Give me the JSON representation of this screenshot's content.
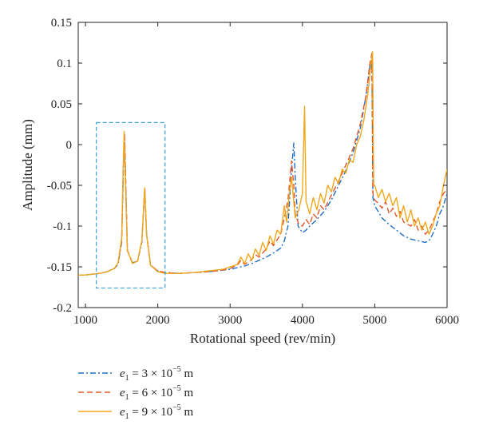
{
  "chart_data": {
    "type": "line",
    "title": "",
    "xlabel": "Rotational speed (rev/min)",
    "ylabel": "Amplitude (mm)",
    "xlim": [
      900,
      6000
    ],
    "ylim": [
      -0.2,
      0.15
    ],
    "xticks": [
      "1000",
      "2000",
      "3000",
      "4000",
      "5000",
      "6000"
    ],
    "yticks": [
      "0.15",
      "0.1",
      "0.05",
      "0",
      "-0.05",
      "-0.1",
      "-0.15",
      "-0.2"
    ],
    "grid": false,
    "legend_position": "bottom-left",
    "highlight_box": {
      "x": [
        1150,
        2100
      ],
      "y": [
        -0.176,
        0.027
      ],
      "style": "dashed",
      "color": "#4aa8e0"
    },
    "series": [
      {
        "name": "e1 = 3 × 10^-5 m",
        "legend_label": {
          "var": "e",
          "sub": "1",
          "eq": " = 3 × 10",
          "exp": "−5",
          "unit": " m"
        },
        "color": "#1f6fc5",
        "dash": "dashdot",
        "points": [
          [
            900,
            -0.16
          ],
          [
            1000,
            -0.16
          ],
          [
            1100,
            -0.159
          ],
          [
            1200,
            -0.158
          ],
          [
            1300,
            -0.156
          ],
          [
            1400,
            -0.152
          ],
          [
            1450,
            -0.147
          ],
          [
            1500,
            -0.12
          ],
          [
            1525,
            -0.03
          ],
          [
            1540,
            0.012
          ],
          [
            1555,
            -0.04
          ],
          [
            1580,
            -0.13
          ],
          [
            1650,
            -0.145
          ],
          [
            1720,
            -0.143
          ],
          [
            1780,
            -0.12
          ],
          [
            1820,
            -0.055
          ],
          [
            1845,
            -0.11
          ],
          [
            1900,
            -0.148
          ],
          [
            2000,
            -0.155
          ],
          [
            2100,
            -0.157
          ],
          [
            2300,
            -0.158
          ],
          [
            2500,
            -0.157
          ],
          [
            2700,
            -0.156
          ],
          [
            2900,
            -0.154
          ],
          [
            3000,
            -0.153
          ],
          [
            3100,
            -0.151
          ],
          [
            3200,
            -0.149
          ],
          [
            3300,
            -0.146
          ],
          [
            3400,
            -0.142
          ],
          [
            3500,
            -0.138
          ],
          [
            3600,
            -0.133
          ],
          [
            3700,
            -0.127
          ],
          [
            3750,
            -0.118
          ],
          [
            3800,
            -0.1
          ],
          [
            3850,
            -0.03
          ],
          [
            3880,
            0.002
          ],
          [
            3900,
            -0.04
          ],
          [
            3940,
            -0.1
          ],
          [
            4000,
            -0.108
          ],
          [
            4050,
            -0.105
          ],
          [
            4100,
            -0.1
          ],
          [
            4200,
            -0.092
          ],
          [
            4300,
            -0.082
          ],
          [
            4400,
            -0.068
          ],
          [
            4500,
            -0.05
          ],
          [
            4600,
            -0.032
          ],
          [
            4700,
            -0.01
          ],
          [
            4800,
            0.02
          ],
          [
            4880,
            0.06
          ],
          [
            4930,
            0.095
          ],
          [
            4960,
            0.11
          ],
          [
            4975,
            -0.065
          ],
          [
            5000,
            -0.075
          ],
          [
            5100,
            -0.09
          ],
          [
            5200,
            -0.098
          ],
          [
            5300,
            -0.105
          ],
          [
            5400,
            -0.112
          ],
          [
            5500,
            -0.116
          ],
          [
            5600,
            -0.118
          ],
          [
            5700,
            -0.12
          ],
          [
            5750,
            -0.118
          ],
          [
            5800,
            -0.11
          ],
          [
            5850,
            -0.1
          ],
          [
            5900,
            -0.085
          ],
          [
            5950,
            -0.075
          ],
          [
            6000,
            -0.06
          ]
        ]
      },
      {
        "name": "e1 = 6 × 10^-5 m",
        "legend_label": {
          "var": "e",
          "sub": "1",
          "eq": " = 6 × 10",
          "exp": "−5",
          "unit": " m"
        },
        "color": "#e2572b",
        "dash": "dashed",
        "points": [
          [
            900,
            -0.16
          ],
          [
            1000,
            -0.16
          ],
          [
            1100,
            -0.159
          ],
          [
            1200,
            -0.158
          ],
          [
            1300,
            -0.156
          ],
          [
            1400,
            -0.152
          ],
          [
            1450,
            -0.146
          ],
          [
            1500,
            -0.118
          ],
          [
            1525,
            -0.025
          ],
          [
            1540,
            0.014
          ],
          [
            1555,
            -0.04
          ],
          [
            1580,
            -0.13
          ],
          [
            1650,
            -0.145
          ],
          [
            1720,
            -0.143
          ],
          [
            1780,
            -0.118
          ],
          [
            1820,
            -0.052
          ],
          [
            1845,
            -0.11
          ],
          [
            1900,
            -0.148
          ],
          [
            2000,
            -0.155
          ],
          [
            2100,
            -0.157
          ],
          [
            2300,
            -0.158
          ],
          [
            2500,
            -0.157
          ],
          [
            2700,
            -0.156
          ],
          [
            2900,
            -0.154
          ],
          [
            3000,
            -0.152
          ],
          [
            3100,
            -0.148
          ],
          [
            3150,
            -0.142
          ],
          [
            3200,
            -0.147
          ],
          [
            3300,
            -0.141
          ],
          [
            3350,
            -0.135
          ],
          [
            3400,
            -0.138
          ],
          [
            3500,
            -0.128
          ],
          [
            3550,
            -0.118
          ],
          [
            3600,
            -0.124
          ],
          [
            3700,
            -0.11
          ],
          [
            3750,
            -0.09
          ],
          [
            3800,
            -0.068
          ],
          [
            3830,
            -0.04
          ],
          [
            3850,
            -0.02
          ],
          [
            3880,
            -0.05
          ],
          [
            3900,
            -0.085
          ],
          [
            3950,
            -0.098
          ],
          [
            4000,
            -0.1
          ],
          [
            4050,
            -0.092
          ],
          [
            4100,
            -0.098
          ],
          [
            4150,
            -0.085
          ],
          [
            4200,
            -0.09
          ],
          [
            4250,
            -0.075
          ],
          [
            4300,
            -0.08
          ],
          [
            4400,
            -0.062
          ],
          [
            4500,
            -0.045
          ],
          [
            4600,
            -0.025
          ],
          [
            4700,
            -0.005
          ],
          [
            4800,
            0.025
          ],
          [
            4880,
            0.06
          ],
          [
            4930,
            0.098
          ],
          [
            4960,
            0.112
          ],
          [
            4975,
            -0.06
          ],
          [
            5000,
            -0.068
          ],
          [
            5050,
            -0.072
          ],
          [
            5100,
            -0.078
          ],
          [
            5150,
            -0.07
          ],
          [
            5200,
            -0.085
          ],
          [
            5250,
            -0.078
          ],
          [
            5300,
            -0.088
          ],
          [
            5350,
            -0.082
          ],
          [
            5400,
            -0.095
          ],
          [
            5500,
            -0.1
          ],
          [
            5550,
            -0.092
          ],
          [
            5600,
            -0.105
          ],
          [
            5650,
            -0.1
          ],
          [
            5700,
            -0.11
          ],
          [
            5750,
            -0.105
          ],
          [
            5800,
            -0.095
          ],
          [
            5850,
            -0.085
          ],
          [
            5900,
            -0.07
          ],
          [
            5950,
            -0.06
          ],
          [
            6000,
            -0.055
          ]
        ]
      },
      {
        "name": "e1 = 9 × 10^-5 m",
        "legend_label": {
          "var": "e",
          "sub": "1",
          "eq": " = 9 × 10",
          "exp": "−5",
          "unit": " m"
        },
        "color": "#f0a81c",
        "dash": "solid",
        "points": [
          [
            900,
            -0.16
          ],
          [
            1000,
            -0.16
          ],
          [
            1100,
            -0.159
          ],
          [
            1200,
            -0.158
          ],
          [
            1300,
            -0.156
          ],
          [
            1400,
            -0.152
          ],
          [
            1450,
            -0.145
          ],
          [
            1500,
            -0.115
          ],
          [
            1520,
            -0.03
          ],
          [
            1535,
            0.016
          ],
          [
            1550,
            -0.04
          ],
          [
            1580,
            -0.13
          ],
          [
            1650,
            -0.146
          ],
          [
            1720,
            -0.143
          ],
          [
            1780,
            -0.118
          ],
          [
            1820,
            -0.053
          ],
          [
            1845,
            -0.11
          ],
          [
            1900,
            -0.148
          ],
          [
            2000,
            -0.156
          ],
          [
            2100,
            -0.158
          ],
          [
            2300,
            -0.158
          ],
          [
            2500,
            -0.157
          ],
          [
            2700,
            -0.155
          ],
          [
            2900,
            -0.153
          ],
          [
            3000,
            -0.15
          ],
          [
            3100,
            -0.147
          ],
          [
            3150,
            -0.138
          ],
          [
            3200,
            -0.146
          ],
          [
            3250,
            -0.134
          ],
          [
            3300,
            -0.142
          ],
          [
            3350,
            -0.128
          ],
          [
            3400,
            -0.136
          ],
          [
            3450,
            -0.12
          ],
          [
            3500,
            -0.13
          ],
          [
            3550,
            -0.112
          ],
          [
            3600,
            -0.122
          ],
          [
            3650,
            -0.105
          ],
          [
            3700,
            -0.11
          ],
          [
            3750,
            -0.075
          ],
          [
            3780,
            -0.095
          ],
          [
            3820,
            -0.06
          ],
          [
            3850,
            -0.04
          ],
          [
            3900,
            -0.09
          ],
          [
            3950,
            -0.08
          ],
          [
            4000,
            -0.06
          ],
          [
            4030,
            0.047
          ],
          [
            4050,
            -0.07
          ],
          [
            4100,
            -0.085
          ],
          [
            4150,
            -0.065
          ],
          [
            4200,
            -0.08
          ],
          [
            4250,
            -0.06
          ],
          [
            4300,
            -0.072
          ],
          [
            4350,
            -0.05
          ],
          [
            4400,
            -0.058
          ],
          [
            4450,
            -0.04
          ],
          [
            4500,
            -0.048
          ],
          [
            4550,
            -0.03
          ],
          [
            4600,
            -0.035
          ],
          [
            4650,
            -0.018
          ],
          [
            4700,
            -0.022
          ],
          [
            4750,
            0.0
          ],
          [
            4800,
            0.01
          ],
          [
            4850,
            0.03
          ],
          [
            4900,
            0.06
          ],
          [
            4950,
            0.1
          ],
          [
            4970,
            0.114
          ],
          [
            4985,
            -0.05
          ],
          [
            5000,
            -0.05
          ],
          [
            5050,
            -0.065
          ],
          [
            5100,
            -0.055
          ],
          [
            5150,
            -0.07
          ],
          [
            5200,
            -0.06
          ],
          [
            5250,
            -0.075
          ],
          [
            5300,
            -0.065
          ],
          [
            5350,
            -0.09
          ],
          [
            5400,
            -0.075
          ],
          [
            5450,
            -0.095
          ],
          [
            5500,
            -0.08
          ],
          [
            5550,
            -0.1
          ],
          [
            5600,
            -0.09
          ],
          [
            5650,
            -0.105
          ],
          [
            5700,
            -0.095
          ],
          [
            5750,
            -0.11
          ],
          [
            5800,
            -0.1
          ],
          [
            5850,
            -0.085
          ],
          [
            5900,
            -0.075
          ],
          [
            5950,
            -0.05
          ],
          [
            6000,
            -0.03
          ]
        ]
      }
    ]
  }
}
